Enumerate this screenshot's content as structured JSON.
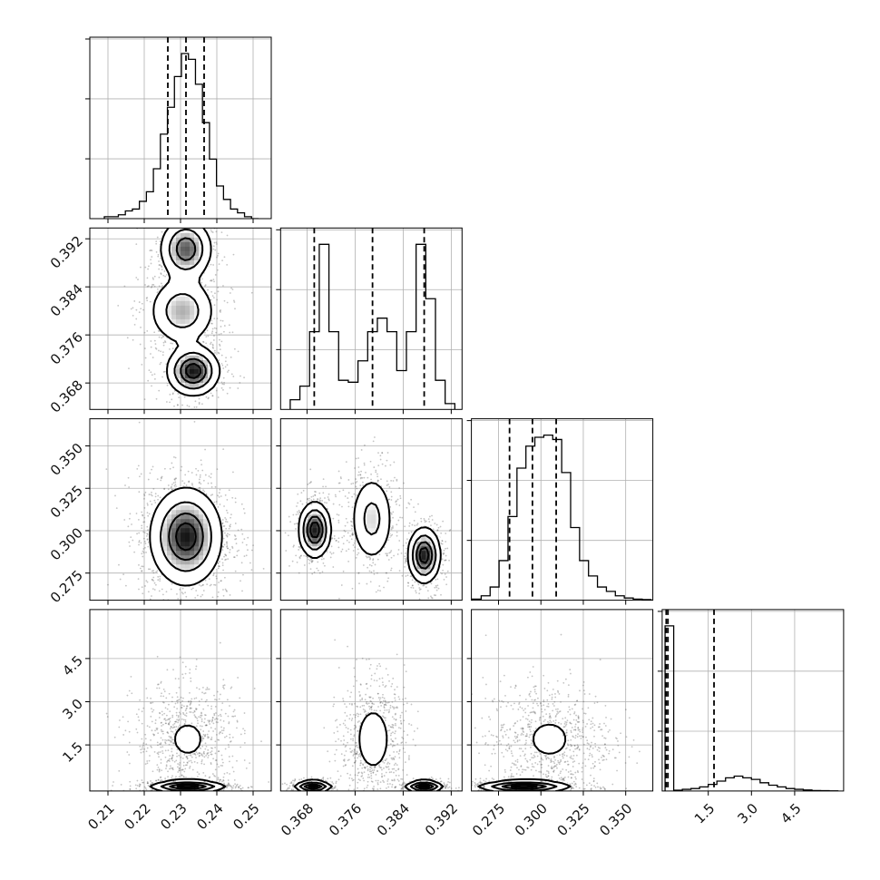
{
  "chart_data": {
    "type": "corner",
    "style": {
      "grid": true,
      "line_color": "#000000",
      "scatter_color": "#555555"
    },
    "params": [
      {
        "range": [
          0.205,
          0.255
        ],
        "ticks": [
          0.21,
          0.22,
          0.23,
          0.24,
          0.25
        ],
        "tick_labels": [
          "0.21",
          "0.22",
          "0.23",
          "0.24",
          "0.25"
        ],
        "quantiles": [
          0.2265,
          0.2315,
          0.2365
        ],
        "hist": {
          "edges_range": [
            0.209,
            0.2515
          ],
          "counts": [
            1,
            1,
            2,
            4,
            5,
            9,
            14,
            26,
            44,
            58,
            74,
            86,
            83,
            70,
            50,
            31,
            17,
            10,
            5,
            3,
            1,
            0
          ]
        }
      },
      {
        "range": [
          0.3636,
          0.3938
        ],
        "ticks": [
          0.368,
          0.376,
          0.384,
          0.392
        ],
        "tick_labels": [
          "0.368",
          "0.376",
          "0.384",
          "0.392"
        ],
        "quantiles": [
          0.3692,
          0.3789,
          0.3875
        ],
        "hist": {
          "edges_range": [
            0.3652,
            0.3926
          ],
          "counts": [
            5,
            12,
            40,
            85,
            40,
            15,
            14,
            25,
            40,
            47,
            40,
            20,
            40,
            85,
            57,
            15,
            3
          ]
        }
      },
      {
        "range": [
          0.259,
          0.366
        ],
        "ticks": [
          0.275,
          0.3,
          0.325,
          0.35
        ],
        "tick_labels": [
          "0.275",
          "0.300",
          "0.325",
          "0.350"
        ],
        "quantiles": [
          0.2815,
          0.295,
          0.309
        ],
        "hist": {
          "edges_range": [
            0.2595,
            0.365
          ],
          "counts": [
            0.5,
            2,
            6,
            18,
            38,
            60,
            70,
            74,
            75,
            73,
            58,
            33,
            18,
            11,
            6,
            4,
            2,
            1,
            0.5,
            0.3
          ]
        }
      },
      {
        "range": [
          -0.1,
          6.2
        ],
        "ticks": [
          1.5,
          3.0,
          4.5
        ],
        "tick_labels": [
          "1.5",
          "3.0",
          "4.5"
        ],
        "quantiles": [
          0.04,
          0.1,
          1.7
        ],
        "hist": {
          "edges_range": [
            0.0,
            6.0
          ],
          "counts": [
            100,
            0.5,
            1,
            1.5,
            2.5,
            4,
            6,
            8,
            9,
            8,
            7,
            5,
            3.5,
            2.5,
            1.5,
            1,
            0.6,
            0.3,
            0.2,
            0.1
          ]
        }
      }
    ],
    "blobs": {
      "1_0": [
        {
          "x": 0.2315,
          "y": 0.3903,
          "sx": 0.0035,
          "sy": 0.0025,
          "w": 1.0
        },
        {
          "x": 0.2305,
          "y": 0.38,
          "sx": 0.0045,
          "sy": 0.0028,
          "w": 1.0
        },
        {
          "x": 0.2335,
          "y": 0.37,
          "sx": 0.0035,
          "sy": 0.002,
          "w": 1.0
        }
      ],
      "2_0": [
        {
          "x": 0.2315,
          "y": 0.2965,
          "sx": 0.0048,
          "sy": 0.014,
          "w": 1.0
        }
      ],
      "2_1": [
        {
          "x": 0.3693,
          "y": 0.3005,
          "sx": 0.0013,
          "sy": 0.008,
          "w": 1.0
        },
        {
          "x": 0.3788,
          "y": 0.307,
          "sx": 0.0018,
          "sy": 0.013,
          "w": 1.0
        },
        {
          "x": 0.3875,
          "y": 0.2855,
          "sx": 0.0013,
          "sy": 0.008,
          "w": 1.0
        }
      ],
      "3_0": [
        {
          "x": 0.232,
          "y": 1.7,
          "sx": 0.0055,
          "sy": 0.75,
          "w": 0.55
        },
        {
          "x": 0.232,
          "y": 0.05,
          "sx": 0.005,
          "sy": 0.1,
          "w": 0.45
        }
      ],
      "3_1": [
        {
          "x": 0.379,
          "y": 1.7,
          "sx": 0.002,
          "sy": 0.8,
          "w": 0.55
        },
        {
          "x": 0.369,
          "y": 0.05,
          "sx": 0.0015,
          "sy": 0.1,
          "w": 0.22
        },
        {
          "x": 0.3875,
          "y": 0.05,
          "sx": 0.0015,
          "sy": 0.1,
          "w": 0.23
        }
      ],
      "3_2": [
        {
          "x": 0.305,
          "y": 1.7,
          "sx": 0.014,
          "sy": 0.75,
          "w": 0.55
        },
        {
          "x": 0.29,
          "y": 0.05,
          "sx": 0.013,
          "sy": 0.1,
          "w": 0.45
        }
      ]
    }
  }
}
